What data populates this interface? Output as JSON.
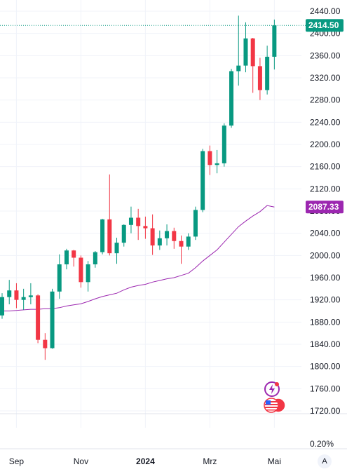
{
  "chart_data": {
    "type": "candlestick",
    "y_axis": {
      "ticks": [
        "2440.00",
        "2400.00",
        "2360.00",
        "2320.00",
        "2280.00",
        "2240.00",
        "2200.00",
        "2160.00",
        "2120.00",
        "2080.00",
        "2040.00",
        "2000.00",
        "1960.00",
        "1920.00",
        "1880.00",
        "1840.00",
        "1800.00",
        "1760.00",
        "1720.00"
      ],
      "ylim": [
        1700,
        2450
      ],
      "percent_label": "0.20%"
    },
    "x_axis": {
      "labels": [
        {
          "text": "Sep",
          "week_index": 2,
          "bold": false
        },
        {
          "text": "Nov",
          "week_index": 11,
          "bold": false
        },
        {
          "text": "2024",
          "week_index": 20,
          "bold": true
        },
        {
          "text": "Mrz",
          "week_index": 29,
          "bold": false
        },
        {
          "text": "Mai",
          "week_index": 38,
          "bold": false
        }
      ]
    },
    "last_price": {
      "text": "2414.50",
      "value": 2414.5,
      "color": "#089981"
    },
    "ma_value": {
      "text": "2087.33",
      "value": 2087.33,
      "color": "#9c27b0"
    },
    "candles": [
      {
        "o": 1892,
        "h": 1932,
        "l": 1886,
        "c": 1925
      },
      {
        "o": 1925,
        "h": 1956,
        "l": 1912,
        "c": 1937
      },
      {
        "o": 1937,
        "h": 1950,
        "l": 1905,
        "c": 1920
      },
      {
        "o": 1920,
        "h": 1940,
        "l": 1902,
        "c": 1925
      },
      {
        "o": 1925,
        "h": 1950,
        "l": 1912,
        "c": 1928
      },
      {
        "o": 1928,
        "h": 1930,
        "l": 1842,
        "c": 1848
      },
      {
        "o": 1848,
        "h": 1860,
        "l": 1812,
        "c": 1833
      },
      {
        "o": 1833,
        "h": 1940,
        "l": 1832,
        "c": 1935
      },
      {
        "o": 1935,
        "h": 2002,
        "l": 1922,
        "c": 1984
      },
      {
        "o": 1984,
        "h": 2012,
        "l": 1975,
        "c": 2009
      },
      {
        "o": 2009,
        "h": 2010,
        "l": 1980,
        "c": 1996
      },
      {
        "o": 1996,
        "h": 2000,
        "l": 1942,
        "c": 1952
      },
      {
        "o": 1952,
        "h": 1990,
        "l": 1935,
        "c": 1984
      },
      {
        "o": 1984,
        "h": 2008,
        "l": 1978,
        "c": 2006
      },
      {
        "o": 2006,
        "h": 2066,
        "l": 2002,
        "c": 2065
      },
      {
        "o": 2065,
        "h": 2146,
        "l": 2000,
        "c": 2004
      },
      {
        "o": 2004,
        "h": 2032,
        "l": 1985,
        "c": 2023
      },
      {
        "o": 2023,
        "h": 2056,
        "l": 2016,
        "c": 2055
      },
      {
        "o": 2055,
        "h": 2088,
        "l": 2040,
        "c": 2068
      },
      {
        "o": 2068,
        "h": 2084,
        "l": 2028,
        "c": 2053
      },
      {
        "o": 2053,
        "h": 2070,
        "l": 2030,
        "c": 2049
      },
      {
        "o": 2049,
        "h": 2074,
        "l": 2001,
        "c": 2018
      },
      {
        "o": 2018,
        "h": 2045,
        "l": 2010,
        "c": 2031
      },
      {
        "o": 2031,
        "h": 2056,
        "l": 2018,
        "c": 2044
      },
      {
        "o": 2044,
        "h": 2050,
        "l": 2012,
        "c": 2026
      },
      {
        "o": 2026,
        "h": 2036,
        "l": 1985,
        "c": 2016
      },
      {
        "o": 2016,
        "h": 2040,
        "l": 2010,
        "c": 2034
      },
      {
        "o": 2034,
        "h": 2088,
        "l": 2028,
        "c": 2082
      },
      {
        "o": 2082,
        "h": 2192,
        "l": 2078,
        "c": 2188
      },
      {
        "o": 2188,
        "h": 2198,
        "l": 2145,
        "c": 2163
      },
      {
        "o": 2163,
        "h": 2190,
        "l": 2148,
        "c": 2166
      },
      {
        "o": 2166,
        "h": 2238,
        "l": 2160,
        "c": 2234
      },
      {
        "o": 2234,
        "h": 2336,
        "l": 2230,
        "c": 2332
      },
      {
        "o": 2332,
        "h": 2432,
        "l": 2306,
        "c": 2342
      },
      {
        "o": 2342,
        "h": 2420,
        "l": 2330,
        "c": 2391
      },
      {
        "o": 2391,
        "h": 2392,
        "l": 2293,
        "c": 2341
      },
      {
        "o": 2341,
        "h": 2356,
        "l": 2280,
        "c": 2298
      },
      {
        "o": 2298,
        "h": 2378,
        "l": 2290,
        "c": 2358
      },
      {
        "o": 2358,
        "h": 2425,
        "l": 2335,
        "c": 2414.5
      }
    ],
    "ma_series": [
      1900,
      1900,
      1901,
      1902,
      1903,
      1903,
      1904,
      1904,
      1906,
      1909,
      1911,
      1913,
      1917,
      1922,
      1926,
      1929,
      1932,
      1938,
      1943,
      1946,
      1948,
      1952,
      1955,
      1958,
      1960,
      1964,
      1968,
      1978,
      1990,
      2000,
      2010,
      2024,
      2038,
      2052,
      2062,
      2071,
      2079,
      2090,
      2087.33
    ],
    "colors": {
      "up": "#089981",
      "down": "#f23645",
      "ma": "#9c27b0",
      "grid": "#f0f3fa",
      "price_line": "#089981"
    },
    "grid": true,
    "price_scale": "right"
  },
  "ui": {
    "auto_label": "A",
    "icons": [
      "flash-icon",
      "us-flag-icon"
    ]
  }
}
